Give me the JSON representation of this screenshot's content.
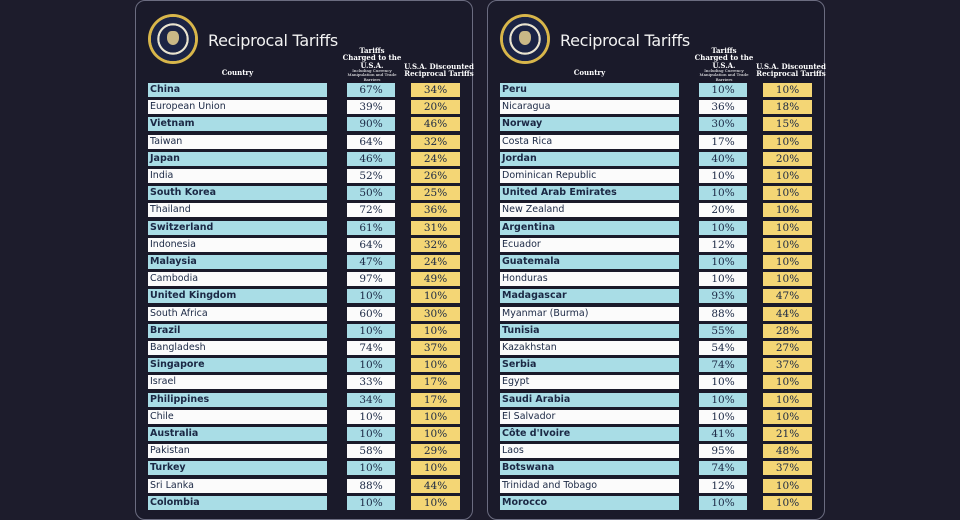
{
  "title": "Reciprocal Tariffs",
  "headers": {
    "country": "Country",
    "charged": "Tariffs Charged to the U.S.A.",
    "charged_note": "Including Currency Manipulation and Trade Barriers",
    "discounted": "U.S.A. Discounted Reciprocal Tariffs"
  },
  "chart_data": {
    "type": "table",
    "title": "Reciprocal Tariffs",
    "columns": [
      "Country",
      "Tariffs Charged to the U.S.A.",
      "U.S.A. Discounted Reciprocal Tariffs"
    ],
    "left": [
      [
        "China",
        "67%",
        "34%"
      ],
      [
        "European Union",
        "39%",
        "20%"
      ],
      [
        "Vietnam",
        "90%",
        "46%"
      ],
      [
        "Taiwan",
        "64%",
        "32%"
      ],
      [
        "Japan",
        "46%",
        "24%"
      ],
      [
        "India",
        "52%",
        "26%"
      ],
      [
        "South Korea",
        "50%",
        "25%"
      ],
      [
        "Thailand",
        "72%",
        "36%"
      ],
      [
        "Switzerland",
        "61%",
        "31%"
      ],
      [
        "Indonesia",
        "64%",
        "32%"
      ],
      [
        "Malaysia",
        "47%",
        "24%"
      ],
      [
        "Cambodia",
        "97%",
        "49%"
      ],
      [
        "United Kingdom",
        "10%",
        "10%"
      ],
      [
        "South Africa",
        "60%",
        "30%"
      ],
      [
        "Brazil",
        "10%",
        "10%"
      ],
      [
        "Bangladesh",
        "74%",
        "37%"
      ],
      [
        "Singapore",
        "10%",
        "10%"
      ],
      [
        "Israel",
        "33%",
        "17%"
      ],
      [
        "Philippines",
        "34%",
        "17%"
      ],
      [
        "Chile",
        "10%",
        "10%"
      ],
      [
        "Australia",
        "10%",
        "10%"
      ],
      [
        "Pakistan",
        "58%",
        "29%"
      ],
      [
        "Turkey",
        "10%",
        "10%"
      ],
      [
        "Sri Lanka",
        "88%",
        "44%"
      ],
      [
        "Colombia",
        "10%",
        "10%"
      ]
    ],
    "right": [
      [
        "Peru",
        "10%",
        "10%"
      ],
      [
        "Nicaragua",
        "36%",
        "18%"
      ],
      [
        "Norway",
        "30%",
        "15%"
      ],
      [
        "Costa Rica",
        "17%",
        "10%"
      ],
      [
        "Jordan",
        "40%",
        "20%"
      ],
      [
        "Dominican Republic",
        "10%",
        "10%"
      ],
      [
        "United Arab Emirates",
        "10%",
        "10%"
      ],
      [
        "New Zealand",
        "20%",
        "10%"
      ],
      [
        "Argentina",
        "10%",
        "10%"
      ],
      [
        "Ecuador",
        "12%",
        "10%"
      ],
      [
        "Guatemala",
        "10%",
        "10%"
      ],
      [
        "Honduras",
        "10%",
        "10%"
      ],
      [
        "Madagascar",
        "93%",
        "47%"
      ],
      [
        "Myanmar (Burma)",
        "88%",
        "44%"
      ],
      [
        "Tunisia",
        "55%",
        "28%"
      ],
      [
        "Kazakhstan",
        "54%",
        "27%"
      ],
      [
        "Serbia",
        "74%",
        "37%"
      ],
      [
        "Egypt",
        "10%",
        "10%"
      ],
      [
        "Saudi Arabia",
        "10%",
        "10%"
      ],
      [
        "El Salvador",
        "10%",
        "10%"
      ],
      [
        "Côte d'Ivoire",
        "41%",
        "21%"
      ],
      [
        "Laos",
        "95%",
        "48%"
      ],
      [
        "Botswana",
        "74%",
        "37%"
      ],
      [
        "Trinidad and Tobago",
        "12%",
        "10%"
      ],
      [
        "Morocco",
        "10%",
        "10%"
      ]
    ]
  },
  "colors": {
    "background": "#1d1c2c",
    "cyan": "#a9dde6",
    "white": "#fbfbfb",
    "yellow": "#f4d675",
    "text": "#1b2844"
  }
}
